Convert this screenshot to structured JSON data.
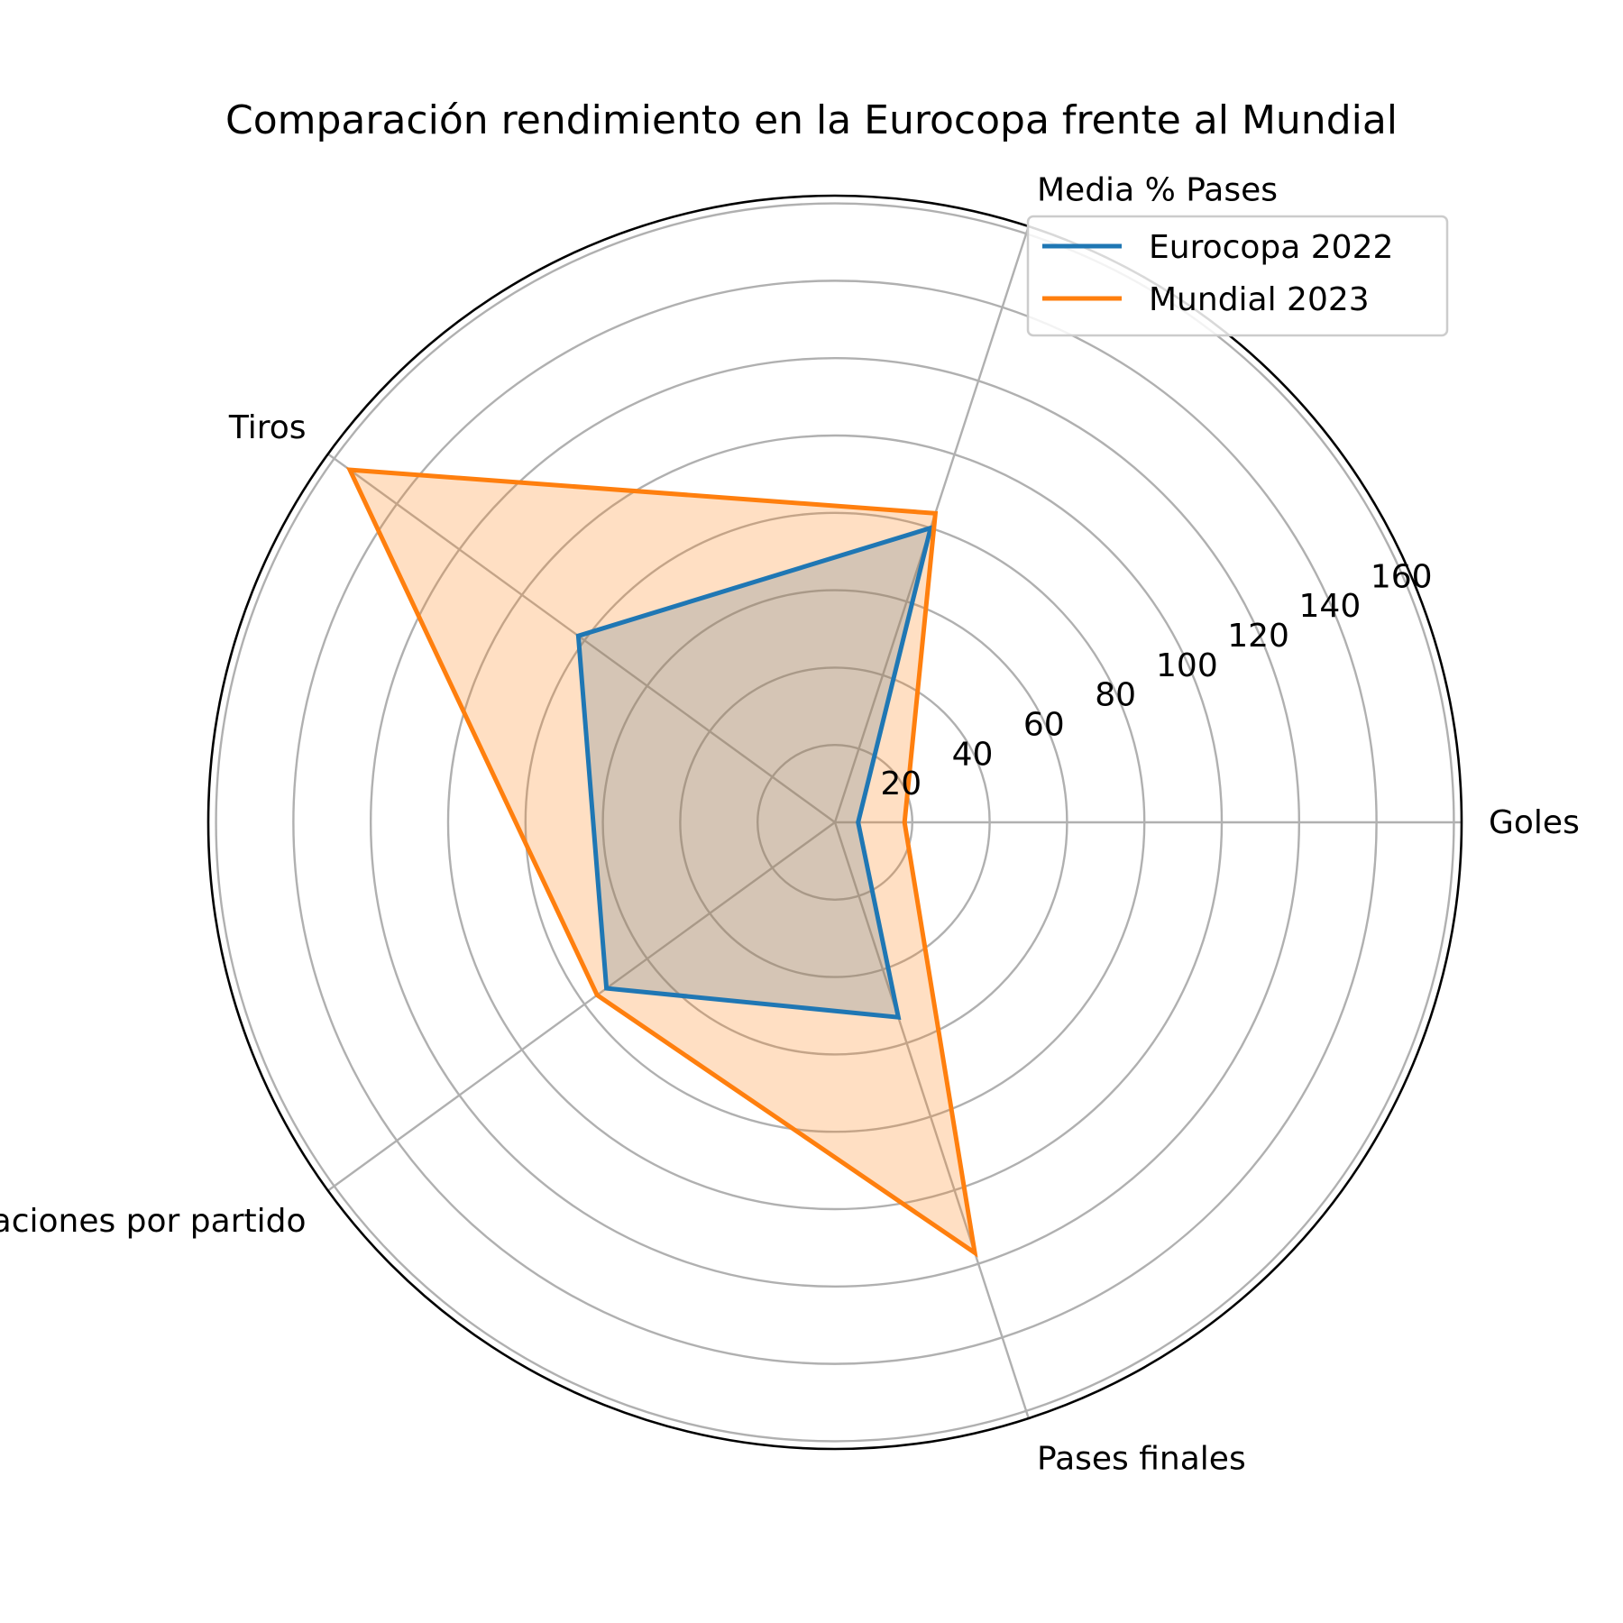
{
  "chart_data": {
    "type": "radar",
    "title": "Comparación rendimiento en la Eurocopa frente al Mundial",
    "categories": [
      "Goles",
      "Media % Pases",
      "Tiros",
      "Recuperaciones por partido",
      "Pases finales"
    ],
    "radial_ticks": [
      20,
      40,
      60,
      80,
      100,
      120,
      140,
      160
    ],
    "rlim": [
      0,
      162
    ],
    "grid": true,
    "legend_position": "top-right",
    "series": [
      {
        "name": "Eurocopa 2022",
        "values": [
          6,
          80,
          82,
          73,
          53
        ],
        "color": "#1f77b4",
        "fill": "#1f77b4",
        "fill_opacity": 0.25
      },
      {
        "name": "Mundial 2023",
        "values": [
          18,
          84,
          155,
          76,
          117
        ],
        "color": "#ff7f0e",
        "fill": "#ff7f0e",
        "fill_opacity": 0.25
      }
    ]
  }
}
